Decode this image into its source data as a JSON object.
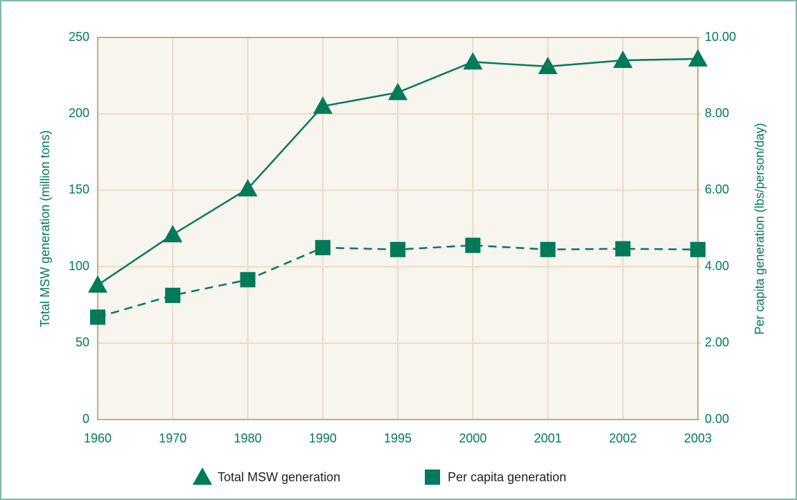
{
  "chart_data": {
    "type": "line",
    "ylabel": "Total MSW generation (million tons)",
    "y2label": "Per capita generation (lbs/person/day)",
    "categories": [
      "1960",
      "1970",
      "1980",
      "1990",
      "1995",
      "2000",
      "2001",
      "2002",
      "2003"
    ],
    "series": [
      {
        "name": "Total MSW generation",
        "color": "#007a58",
        "marker": "triangle",
        "linestyle": "solid",
        "values": [
          88,
          121,
          151,
          205,
          214,
          234,
          231,
          235,
          236
        ]
      },
      {
        "name": "Per capita generation",
        "color": "#007a58",
        "marker": "square",
        "linestyle": "dashed",
        "axis": "y2",
        "values": [
          2.68,
          3.25,
          3.66,
          4.5,
          4.45,
          4.56,
          4.45,
          4.47,
          4.45
        ]
      }
    ],
    "ylim": [
      0,
      250
    ],
    "yticks": [
      0,
      50,
      100,
      150,
      200,
      250
    ],
    "y2lim": [
      0,
      10
    ],
    "y2ticks": [
      {
        "value": 0,
        "label": "0.00"
      },
      {
        "value": 2,
        "label": "2.00"
      },
      {
        "value": 4,
        "label": "4.00"
      },
      {
        "value": 6,
        "label": "6.00"
      },
      {
        "value": 8,
        "label": "8.00"
      },
      {
        "value": 10,
        "label": "10.00"
      }
    ],
    "grid": true,
    "legend": "bottom"
  }
}
